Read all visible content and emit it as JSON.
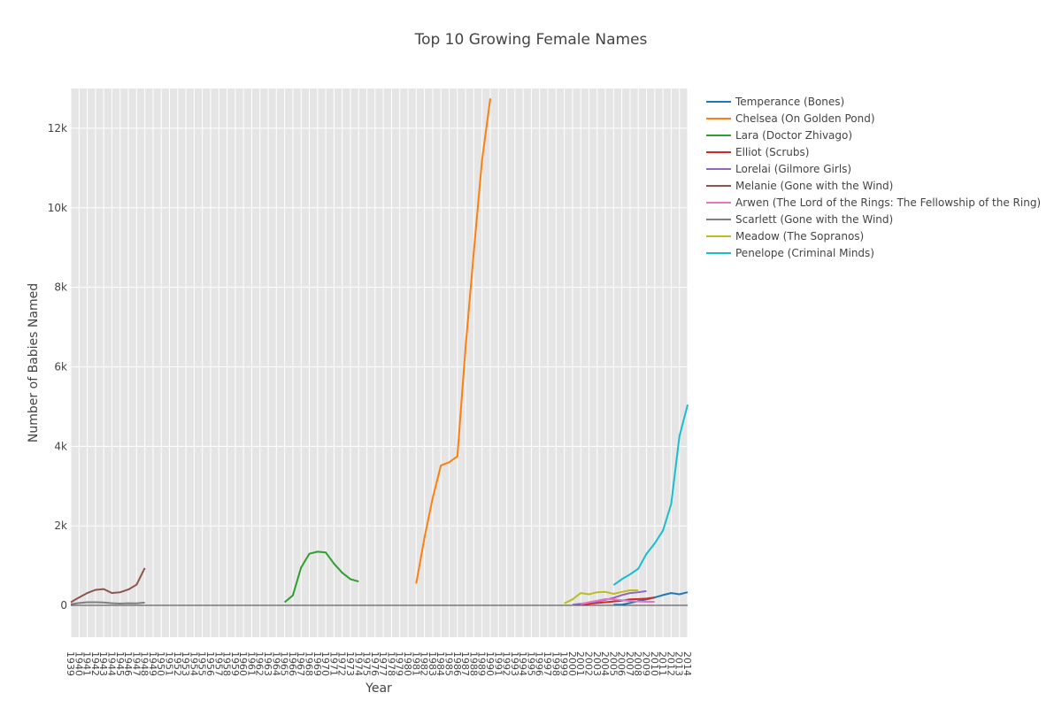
{
  "chart_data": {
    "type": "line",
    "title": "Top 10 Growing Female Names",
    "xlabel": "Year",
    "ylabel": "Number of Babies Named",
    "xlim": [
      1939,
      2014
    ],
    "ylim": [
      -800,
      13000
    ],
    "yticks": [
      0,
      2000,
      4000,
      6000,
      8000,
      10000,
      12000
    ],
    "ytick_labels": [
      "0",
      "2k",
      "4k",
      "6k",
      "8k",
      "10k",
      "12k"
    ],
    "xticks": [
      1939,
      1940,
      1941,
      1942,
      1943,
      1944,
      1945,
      1946,
      1947,
      1948,
      1949,
      1950,
      1951,
      1952,
      1953,
      1954,
      1955,
      1956,
      1957,
      1958,
      1959,
      1960,
      1961,
      1962,
      1963,
      1964,
      1965,
      1966,
      1967,
      1968,
      1969,
      1970,
      1971,
      1972,
      1973,
      1974,
      1975,
      1976,
      1977,
      1978,
      1979,
      1980,
      1981,
      1982,
      1983,
      1984,
      1985,
      1986,
      1987,
      1988,
      1989,
      1990,
      1991,
      1992,
      1993,
      1994,
      1995,
      1996,
      1997,
      1998,
      1999,
      2000,
      2001,
      2002,
      2003,
      2004,
      2005,
      2006,
      2007,
      2008,
      2009,
      2010,
      2011,
      2012,
      2013,
      2014
    ],
    "grid": true,
    "legend": "right",
    "background": "#e5e5e5",
    "series": [
      {
        "name": "Temperance (Bones)",
        "color": "#1f77b4",
        "x": [
          2005,
          2006,
          2007,
          2008,
          2009,
          2010,
          2011,
          2012,
          2013,
          2014
        ],
        "y": [
          20,
          20,
          60,
          110,
          150,
          200,
          260,
          310,
          280,
          330
        ]
      },
      {
        "name": "Chelsea (On Golden Pond)",
        "color": "#ff7f0e",
        "x": [
          1981,
          1982,
          1983,
          1984,
          1985,
          1986,
          1987,
          1988,
          1989,
          1990
        ],
        "y": [
          550,
          1700,
          2700,
          3520,
          3600,
          3750,
          6500,
          8900,
          11200,
          12750
        ]
      },
      {
        "name": "Lara (Doctor Zhivago)",
        "color": "#2ca02c",
        "x": [
          1965,
          1966,
          1967,
          1968,
          1969,
          1970,
          1971,
          1972,
          1973,
          1974
        ],
        "y": [
          80,
          250,
          950,
          1300,
          1350,
          1330,
          1050,
          820,
          660,
          600
        ]
      },
      {
        "name": "Elliot (Scrubs)",
        "color": "#d62728",
        "x": [
          2001,
          2002,
          2003,
          2004,
          2005,
          2006,
          2007,
          2008,
          2009,
          2010
        ],
        "y": [
          20,
          40,
          60,
          80,
          100,
          120,
          150,
          160,
          170,
          200
        ]
      },
      {
        "name": "Lorelai (Gilmore Girls)",
        "color": "#9467bd",
        "x": [
          2000,
          2001,
          2002,
          2003,
          2004,
          2005,
          2006,
          2007,
          2008,
          2009
        ],
        "y": [
          20,
          40,
          70,
          100,
          140,
          190,
          260,
          310,
          330,
          360
        ]
      },
      {
        "name": "Melanie (Gone with the Wind)",
        "color": "#8c564b",
        "x": [
          1939,
          1940,
          1941,
          1942,
          1943,
          1944,
          1945,
          1946,
          1947,
          1948
        ],
        "y": [
          80,
          200,
          310,
          390,
          410,
          310,
          330,
          400,
          520,
          940
        ]
      },
      {
        "name": "Arwen (The Lord of the Rings: The Fellowship of the Ring)",
        "color": "#e377c2",
        "x": [
          2001,
          2002,
          2003,
          2004,
          2005,
          2006,
          2007,
          2008,
          2009,
          2010
        ],
        "y": [
          30,
          80,
          120,
          160,
          150,
          130,
          110,
          100,
          90,
          90
        ]
      },
      {
        "name": "Scarlett (Gone with the Wind)",
        "color": "#7f7f7f",
        "x": [
          1939,
          1940,
          1941,
          1942,
          1943,
          1944,
          1945,
          1946,
          1947,
          1948
        ],
        "y": [
          30,
          60,
          80,
          80,
          75,
          55,
          45,
          55,
          50,
          70
        ]
      },
      {
        "name": "Meadow (The Sopranos)",
        "color": "#bcbd22",
        "x": [
          1999,
          2000,
          2001,
          2002,
          2003,
          2004,
          2005,
          2006,
          2007,
          2008
        ],
        "y": [
          50,
          150,
          310,
          280,
          330,
          340,
          290,
          340,
          380,
          380
        ]
      },
      {
        "name": "Penelope (Criminal Minds)",
        "color": "#17becf",
        "x": [
          2005,
          2006,
          2007,
          2008,
          2009,
          2010,
          2011,
          2012,
          2013,
          2014
        ],
        "y": [
          510,
          660,
          780,
          920,
          1300,
          1560,
          1880,
          2550,
          4250,
          5050
        ]
      }
    ]
  }
}
